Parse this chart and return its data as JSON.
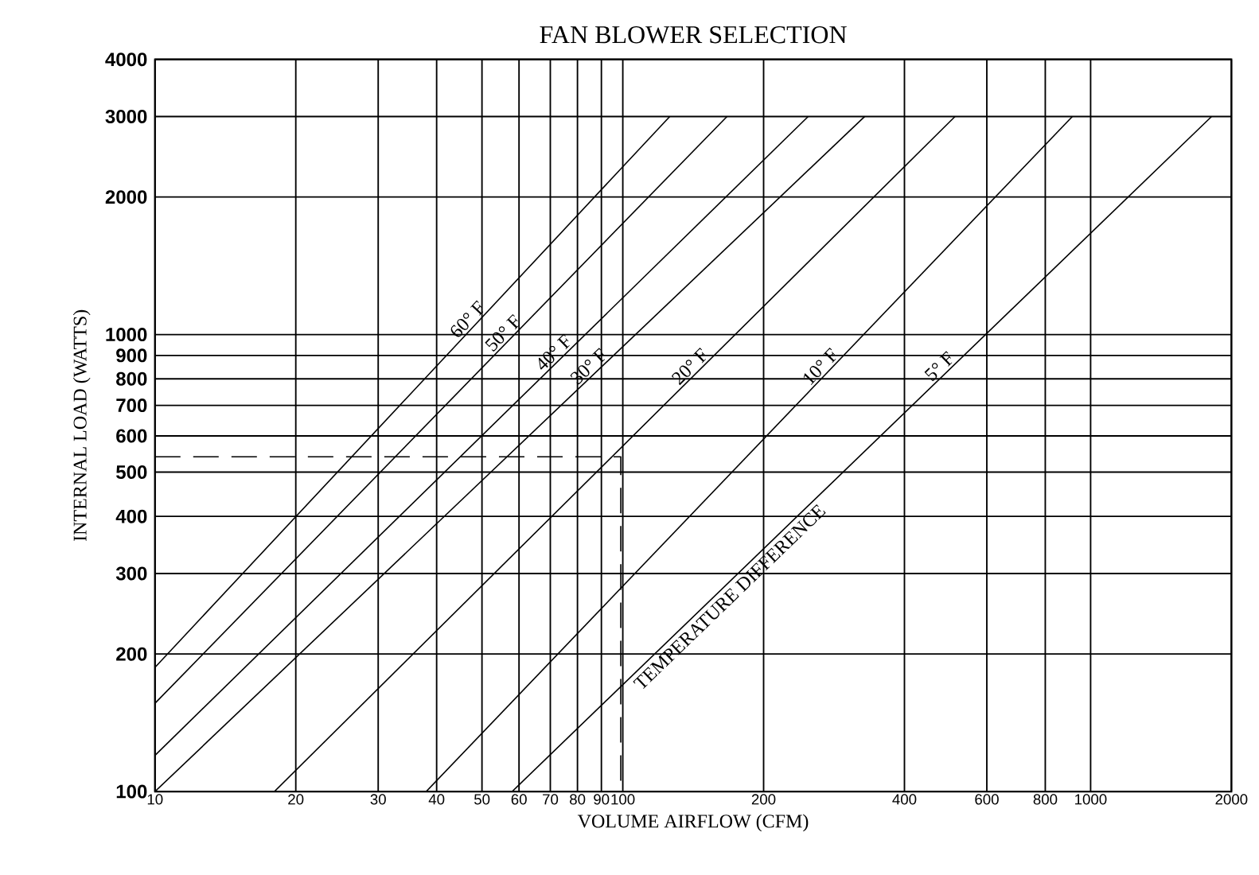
{
  "chart_data": {
    "type": "line",
    "title": "FAN BLOWER SELECTION",
    "xlabel": "VOLUME AIRFLOW (CFM)",
    "ylabel": "INTERNAL LOAD (WATTS)",
    "log": "xy",
    "grid": true,
    "legend": false,
    "xlim": [
      10,
      2000
    ],
    "ylim": [
      100,
      4000
    ],
    "xticks": [
      10,
      20,
      30,
      40,
      50,
      60,
      70,
      80,
      90,
      100,
      200,
      400,
      600,
      800,
      1000,
      2000
    ],
    "yticks": [
      100,
      200,
      300,
      400,
      500,
      600,
      700,
      800,
      900,
      1000,
      2000,
      3000,
      4000
    ],
    "annotations": [
      "TEMPERATURE DIFFERENCE"
    ],
    "series": [
      {
        "name": "60° F",
        "color": "#000000",
        "x": [
          10,
          126
        ],
        "values": [
          187,
          3000
        ]
      },
      {
        "name": "50° F",
        "color": "#000000",
        "x": [
          10,
          167
        ],
        "values": [
          156,
          3000
        ]
      },
      {
        "name": "40° F",
        "color": "#000000",
        "x": [
          10,
          249
        ],
        "values": [
          120,
          3000
        ]
      },
      {
        "name": "30° F",
        "color": "#000000",
        "x": [
          10,
          329
        ],
        "values": [
          100,
          3000
        ]
      },
      {
        "name": "20° F",
        "color": "#000000",
        "x": [
          18,
          513
        ],
        "values": [
          100,
          3000
        ]
      },
      {
        "name": "10° F",
        "color": "#000000",
        "x": [
          38,
          914
        ],
        "values": [
          100,
          3000
        ]
      },
      {
        "name": "5° F",
        "color": "#000000",
        "x": [
          58,
          1814
        ],
        "values": [
          100,
          3000
        ]
      },
      {
        "color": "#000000",
        "line_style": "dashed",
        "x": [
          10,
          99,
          99
        ],
        "values": [
          540,
          540,
          100
        ]
      }
    ]
  }
}
